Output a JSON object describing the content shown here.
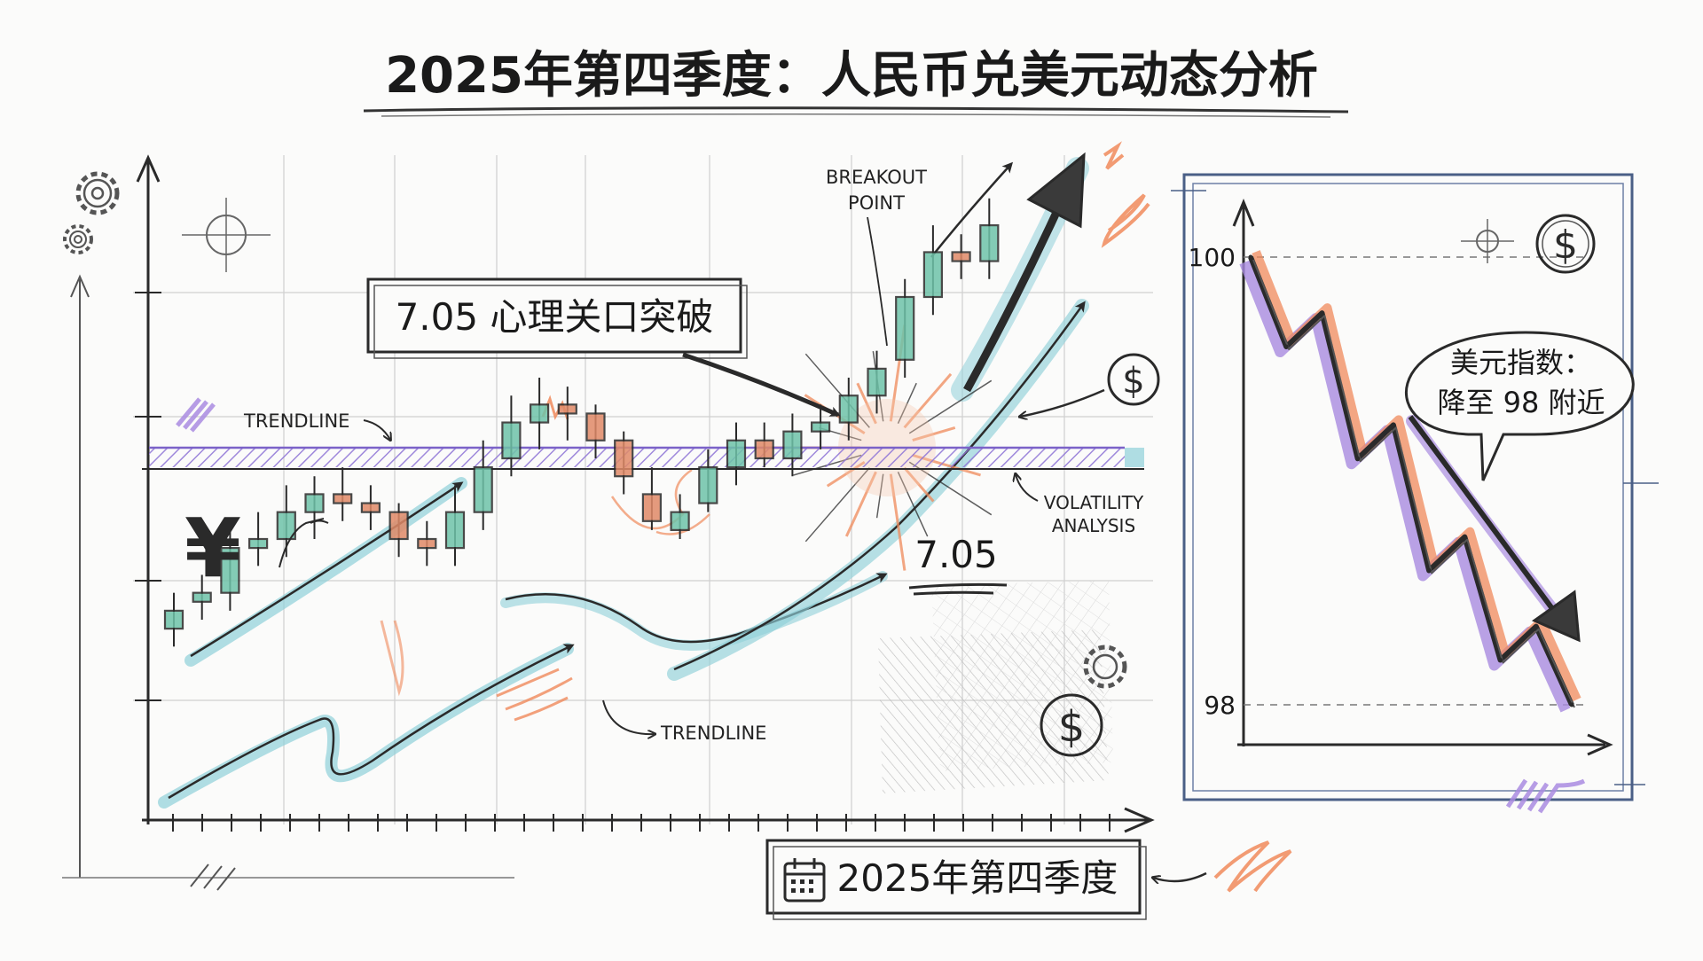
{
  "title": "2025年第四季度：人民币兑美元动态分析",
  "palette": {
    "ink": "#2a2a2a",
    "teal": "#8fd0d8",
    "orange": "#f08a5b",
    "purple": "#a98be0",
    "frame": "#4a5f86",
    "grid": "#cfcfcf"
  },
  "icons": {
    "yuan": "¥",
    "dollar": "$"
  },
  "main_chart": {
    "callout": "7.05 心理关口突破",
    "breakout_label": [
      "BREAKOUT",
      "POINT"
    ],
    "trendline_label": "TRENDLINE",
    "trendline_bottom_label": "TRENDLINE",
    "volatility_label": [
      "VOLATILITY",
      "ANALYSIS"
    ],
    "level_label": "7.05",
    "period_label": "2025年第四季度"
  },
  "chart_data": [
    {
      "type": "candlestick",
      "title": "",
      "reference_level": 7.05,
      "candles": [
        {
          "open": 6.86,
          "close": 6.88,
          "high": 6.9,
          "low": 6.84
        },
        {
          "open": 6.89,
          "close": 6.9,
          "high": 6.92,
          "low": 6.87
        },
        {
          "open": 6.9,
          "close": 6.95,
          "high": 6.97,
          "low": 6.88
        },
        {
          "open": 6.95,
          "close": 6.96,
          "high": 6.99,
          "low": 6.93
        },
        {
          "open": 6.96,
          "close": 6.99,
          "high": 7.02,
          "low": 6.94
        },
        {
          "open": 6.99,
          "close": 7.01,
          "high": 7.03,
          "low": 6.96
        },
        {
          "open": 7.01,
          "close": 7.0,
          "high": 7.04,
          "low": 6.98
        },
        {
          "open": 7.0,
          "close": 6.99,
          "high": 7.02,
          "low": 6.97
        },
        {
          "open": 6.99,
          "close": 6.96,
          "high": 7.0,
          "low": 6.94
        },
        {
          "open": 6.96,
          "close": 6.95,
          "high": 6.98,
          "low": 6.93
        },
        {
          "open": 6.95,
          "close": 6.99,
          "high": 7.02,
          "low": 6.93
        },
        {
          "open": 6.99,
          "close": 7.04,
          "high": 7.07,
          "low": 6.97
        },
        {
          "open": 7.05,
          "close": 7.09,
          "high": 7.12,
          "low": 7.03
        },
        {
          "open": 7.09,
          "close": 7.11,
          "high": 7.14,
          "low": 7.06
        },
        {
          "open": 7.11,
          "close": 7.1,
          "high": 7.13,
          "low": 7.07
        },
        {
          "open": 7.1,
          "close": 7.07,
          "high": 7.11,
          "low": 7.05
        },
        {
          "open": 7.07,
          "close": 7.03,
          "high": 7.08,
          "low": 7.01
        },
        {
          "open": 7.01,
          "close": 6.98,
          "high": 7.04,
          "low": 6.97
        },
        {
          "open": 6.97,
          "close": 6.99,
          "high": 7.01,
          "low": 6.96
        },
        {
          "open": 7.0,
          "close": 7.04,
          "high": 7.06,
          "low": 6.99
        },
        {
          "open": 7.04,
          "close": 7.07,
          "high": 7.09,
          "low": 7.02
        },
        {
          "open": 7.07,
          "close": 7.05,
          "high": 7.09,
          "low": 7.04
        },
        {
          "open": 7.05,
          "close": 7.08,
          "high": 7.1,
          "low": 7.03
        },
        {
          "open": 7.08,
          "close": 7.09,
          "high": 7.11,
          "low": 7.06
        },
        {
          "open": 7.09,
          "close": 7.12,
          "high": 7.14,
          "low": 7.07
        },
        {
          "open": 7.12,
          "close": 7.15,
          "high": 7.17,
          "low": 7.1
        },
        {
          "open": 7.16,
          "close": 7.23,
          "high": 7.25,
          "low": 7.14
        },
        {
          "open": 7.23,
          "close": 7.28,
          "high": 7.31,
          "low": 7.21
        },
        {
          "open": 7.28,
          "close": 7.27,
          "high": 7.3,
          "low": 7.25
        },
        {
          "open": 7.27,
          "close": 7.31,
          "high": 7.34,
          "low": 7.25
        }
      ]
    },
    {
      "type": "line",
      "title": "",
      "callout": "美元指数：降至 98 附近",
      "callout_lines": [
        "美元指数：",
        "降至 98 附近"
      ],
      "y_ticks": [
        "100",
        "98"
      ],
      "ylim": [
        98,
        100
      ],
      "values": [
        100,
        99.6,
        99.75,
        99.1,
        99.25,
        98.6,
        98.75,
        98.2,
        98.35,
        98.0
      ]
    }
  ]
}
